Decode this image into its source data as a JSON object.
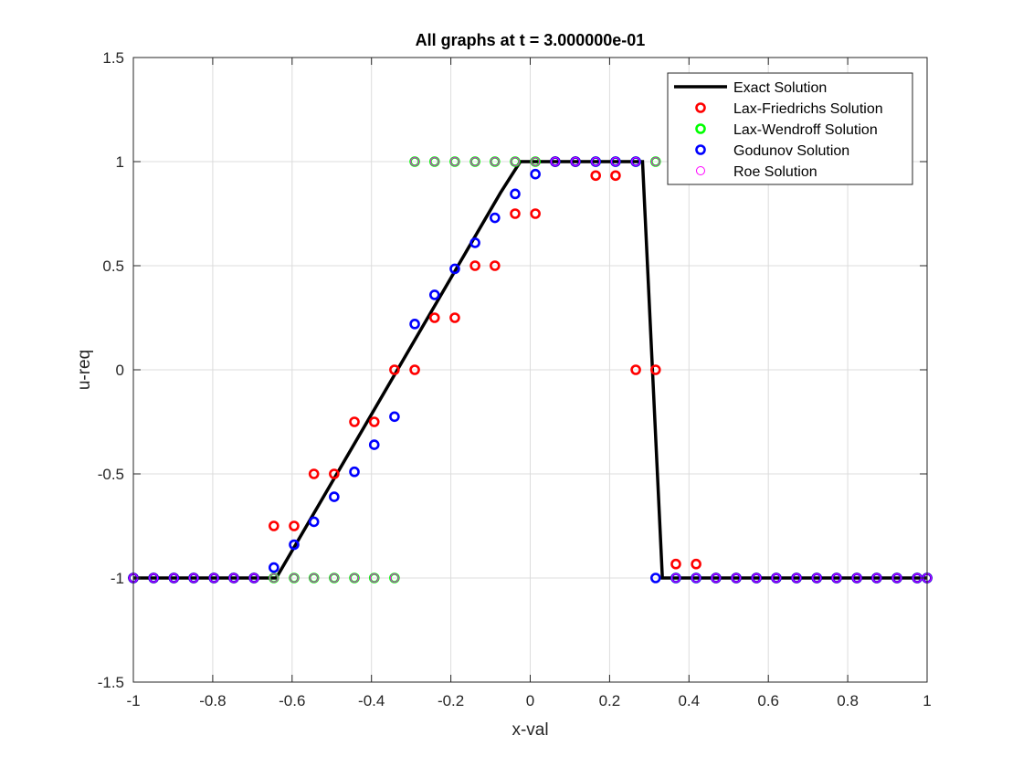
{
  "chart_data": {
    "type": "scatter",
    "title": "All graphs at t = 3.000000e-01",
    "xlabel": "x-val",
    "ylabel": "u-req",
    "xlim": [
      -1,
      1
    ],
    "ylim": [
      -1.5,
      1.5
    ],
    "xticks": [
      -1,
      -0.8,
      -0.6,
      -0.4,
      -0.2,
      0,
      0.2,
      0.4,
      0.6,
      0.8,
      1
    ],
    "xtick_labels": [
      "-1",
      "-0.8",
      "-0.6",
      "-0.4",
      "-0.2",
      "0",
      "0.2",
      "0.4",
      "0.6",
      "0.8",
      "1"
    ],
    "yticks": [
      -1.5,
      -1,
      -0.5,
      0,
      0.5,
      1,
      1.5
    ],
    "ytick_labels": [
      "-1.5",
      "-1",
      "-0.5",
      "0",
      "0.5",
      "1",
      "1.5"
    ],
    "grid": true,
    "legend_position": "top-right",
    "series": [
      {
        "name": "Exact Solution",
        "type": "line",
        "color": "#000000",
        "x": [
          -1,
          -0.64,
          -0.075,
          -0.025,
          0.283,
          0.333,
          1
        ],
        "y": [
          -1,
          -1,
          0.85,
          1,
          1,
          -1,
          -1
        ]
      },
      {
        "name": "Lax-Friedrichs Solution",
        "type": "scatter",
        "color": "#ff0000",
        "x": [
          -1,
          -0.949,
          -0.898,
          -0.848,
          -0.797,
          -0.747,
          -0.696,
          -0.646,
          -0.595,
          -0.545,
          -0.494,
          -0.443,
          -0.393,
          -0.342,
          -0.291,
          -0.241,
          -0.19,
          -0.139,
          -0.089,
          -0.038,
          0.013,
          0.063,
          0.114,
          0.165,
          0.215,
          0.266,
          0.316,
          0.367,
          0.418,
          0.468,
          0.519,
          0.57,
          0.62,
          0.671,
          0.722,
          0.772,
          0.823,
          0.873,
          0.924,
          0.975,
          1
        ],
        "y": [
          -1,
          -1,
          -1,
          -1,
          -1,
          -1,
          -1,
          -0.75,
          -0.75,
          -0.5,
          -0.5,
          -0.25,
          -0.25,
          0,
          0,
          0.25,
          0.25,
          0.5,
          0.5,
          0.75,
          0.75,
          1,
          1,
          0.933,
          0.933,
          0,
          0,
          -0.933,
          -0.933,
          -1,
          -1,
          -1,
          -1,
          -1,
          -1,
          -1,
          -1,
          -1,
          -1,
          -1,
          -1
        ]
      },
      {
        "name": "Lax-Wendroff Solution",
        "type": "scatter",
        "color": "#00ff00",
        "x": [
          -1,
          -0.949,
          -0.898,
          -0.848,
          -0.797,
          -0.747,
          -0.696,
          -0.646,
          -0.595,
          -0.545,
          -0.494,
          -0.443,
          -0.393,
          -0.342,
          -0.291,
          -0.241,
          -0.19,
          -0.139,
          -0.089,
          -0.038,
          0.013,
          0.063,
          0.114,
          0.165,
          0.215,
          0.266,
          0.316,
          0.367,
          0.418,
          0.468,
          0.519,
          0.57,
          0.62,
          0.671,
          0.722,
          0.772,
          0.823,
          0.873,
          0.924,
          0.975,
          1
        ],
        "y": [
          -1,
          -1,
          -1,
          -1,
          -1,
          -1,
          -1,
          -1,
          -1,
          -1,
          -1,
          -1,
          -1,
          -1,
          1,
          1,
          1,
          1,
          1,
          1,
          1,
          1,
          1,
          1,
          1,
          1,
          1,
          -1,
          -1,
          -1,
          -1,
          -1,
          -1,
          -1,
          -1,
          -1,
          -1,
          -1,
          -1,
          -1,
          -1
        ]
      },
      {
        "name": "Godunov Solution",
        "type": "scatter",
        "color": "#0000ff",
        "x": [
          -1,
          -0.949,
          -0.898,
          -0.848,
          -0.797,
          -0.747,
          -0.696,
          -0.646,
          -0.595,
          -0.545,
          -0.494,
          -0.443,
          -0.393,
          -0.342,
          -0.291,
          -0.241,
          -0.19,
          -0.139,
          -0.089,
          -0.038,
          0.013,
          0.063,
          0.114,
          0.165,
          0.215,
          0.266,
          0.316,
          0.367,
          0.418,
          0.468,
          0.519,
          0.57,
          0.62,
          0.671,
          0.722,
          0.772,
          0.823,
          0.873,
          0.924,
          0.975,
          1
        ],
        "y": [
          -1,
          -1,
          -1,
          -1,
          -1,
          -1,
          -1,
          -0.95,
          -0.84,
          -0.73,
          -0.61,
          -0.49,
          -0.36,
          -0.225,
          0.22,
          0.36,
          0.485,
          0.61,
          0.73,
          0.845,
          0.94,
          1,
          1,
          1,
          1,
          1,
          -1,
          -1,
          -1,
          -1,
          -1,
          -1,
          -1,
          -1,
          -1,
          -1,
          -1,
          -1,
          -1,
          -1,
          -1
        ]
      },
      {
        "name": "Roe Solution",
        "type": "scatter",
        "color": "#ff00ff",
        "x": [
          -1,
          -0.949,
          -0.898,
          -0.848,
          -0.797,
          -0.747,
          -0.696,
          -0.646,
          -0.595,
          -0.545,
          -0.494,
          -0.443,
          -0.393,
          -0.342,
          -0.291,
          -0.241,
          -0.19,
          -0.139,
          -0.089,
          -0.038,
          0.013,
          0.063,
          0.114,
          0.165,
          0.215,
          0.266,
          0.316,
          0.367,
          0.418,
          0.468,
          0.519,
          0.57,
          0.62,
          0.671,
          0.722,
          0.772,
          0.823,
          0.873,
          0.924,
          0.975,
          1
        ],
        "y": [
          -1,
          -1,
          -1,
          -1,
          -1,
          -1,
          -1,
          -1,
          -1,
          -1,
          -1,
          -1,
          -1,
          -1,
          1,
          1,
          1,
          1,
          1,
          1,
          1,
          1,
          1,
          1,
          1,
          1,
          1,
          -1,
          -1,
          -1,
          -1,
          -1,
          -1,
          -1,
          -1,
          -1,
          -1,
          -1,
          -1,
          -1,
          -1
        ]
      }
    ]
  }
}
